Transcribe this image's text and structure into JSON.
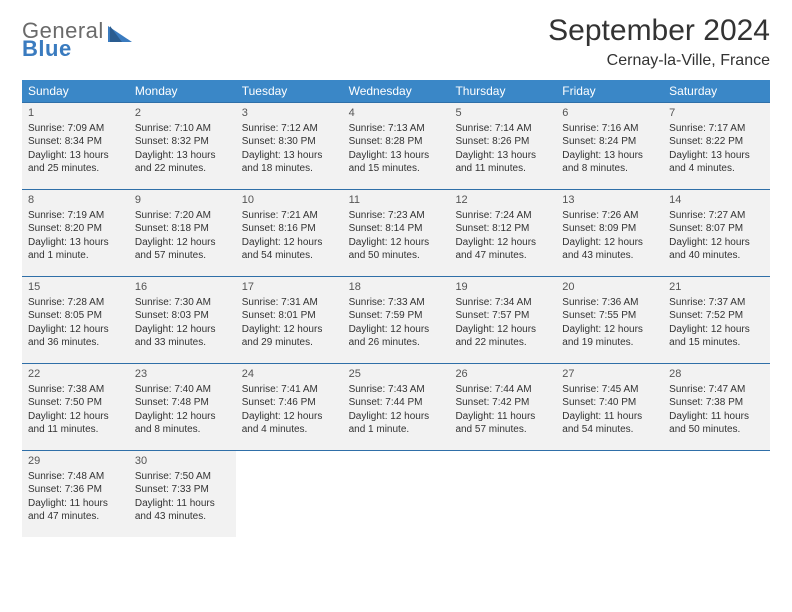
{
  "brand": {
    "top": "General",
    "bottom": "Blue",
    "top_color": "#6a6a6a",
    "bottom_color": "#3a7bbf"
  },
  "title": "September 2024",
  "location": "Cernay-la-Ville, France",
  "accent_color": "#3a87c7",
  "border_color": "#2f6fa8",
  "cell_bg": "#f2f2f2",
  "dow": [
    "Sunday",
    "Monday",
    "Tuesday",
    "Wednesday",
    "Thursday",
    "Friday",
    "Saturday"
  ],
  "weeks": [
    [
      {
        "n": "1",
        "sr": "7:09 AM",
        "ss": "8:34 PM",
        "dl": "13 hours and 25 minutes."
      },
      {
        "n": "2",
        "sr": "7:10 AM",
        "ss": "8:32 PM",
        "dl": "13 hours and 22 minutes."
      },
      {
        "n": "3",
        "sr": "7:12 AM",
        "ss": "8:30 PM",
        "dl": "13 hours and 18 minutes."
      },
      {
        "n": "4",
        "sr": "7:13 AM",
        "ss": "8:28 PM",
        "dl": "13 hours and 15 minutes."
      },
      {
        "n": "5",
        "sr": "7:14 AM",
        "ss": "8:26 PM",
        "dl": "13 hours and 11 minutes."
      },
      {
        "n": "6",
        "sr": "7:16 AM",
        "ss": "8:24 PM",
        "dl": "13 hours and 8 minutes."
      },
      {
        "n": "7",
        "sr": "7:17 AM",
        "ss": "8:22 PM",
        "dl": "13 hours and 4 minutes."
      }
    ],
    [
      {
        "n": "8",
        "sr": "7:19 AM",
        "ss": "8:20 PM",
        "dl": "13 hours and 1 minute."
      },
      {
        "n": "9",
        "sr": "7:20 AM",
        "ss": "8:18 PM",
        "dl": "12 hours and 57 minutes."
      },
      {
        "n": "10",
        "sr": "7:21 AM",
        "ss": "8:16 PM",
        "dl": "12 hours and 54 minutes."
      },
      {
        "n": "11",
        "sr": "7:23 AM",
        "ss": "8:14 PM",
        "dl": "12 hours and 50 minutes."
      },
      {
        "n": "12",
        "sr": "7:24 AM",
        "ss": "8:12 PM",
        "dl": "12 hours and 47 minutes."
      },
      {
        "n": "13",
        "sr": "7:26 AM",
        "ss": "8:09 PM",
        "dl": "12 hours and 43 minutes."
      },
      {
        "n": "14",
        "sr": "7:27 AM",
        "ss": "8:07 PM",
        "dl": "12 hours and 40 minutes."
      }
    ],
    [
      {
        "n": "15",
        "sr": "7:28 AM",
        "ss": "8:05 PM",
        "dl": "12 hours and 36 minutes."
      },
      {
        "n": "16",
        "sr": "7:30 AM",
        "ss": "8:03 PM",
        "dl": "12 hours and 33 minutes."
      },
      {
        "n": "17",
        "sr": "7:31 AM",
        "ss": "8:01 PM",
        "dl": "12 hours and 29 minutes."
      },
      {
        "n": "18",
        "sr": "7:33 AM",
        "ss": "7:59 PM",
        "dl": "12 hours and 26 minutes."
      },
      {
        "n": "19",
        "sr": "7:34 AM",
        "ss": "7:57 PM",
        "dl": "12 hours and 22 minutes."
      },
      {
        "n": "20",
        "sr": "7:36 AM",
        "ss": "7:55 PM",
        "dl": "12 hours and 19 minutes."
      },
      {
        "n": "21",
        "sr": "7:37 AM",
        "ss": "7:52 PM",
        "dl": "12 hours and 15 minutes."
      }
    ],
    [
      {
        "n": "22",
        "sr": "7:38 AM",
        "ss": "7:50 PM",
        "dl": "12 hours and 11 minutes."
      },
      {
        "n": "23",
        "sr": "7:40 AM",
        "ss": "7:48 PM",
        "dl": "12 hours and 8 minutes."
      },
      {
        "n": "24",
        "sr": "7:41 AM",
        "ss": "7:46 PM",
        "dl": "12 hours and 4 minutes."
      },
      {
        "n": "25",
        "sr": "7:43 AM",
        "ss": "7:44 PM",
        "dl": "12 hours and 1 minute."
      },
      {
        "n": "26",
        "sr": "7:44 AM",
        "ss": "7:42 PM",
        "dl": "11 hours and 57 minutes."
      },
      {
        "n": "27",
        "sr": "7:45 AM",
        "ss": "7:40 PM",
        "dl": "11 hours and 54 minutes."
      },
      {
        "n": "28",
        "sr": "7:47 AM",
        "ss": "7:38 PM",
        "dl": "11 hours and 50 minutes."
      }
    ],
    [
      {
        "n": "29",
        "sr": "7:48 AM",
        "ss": "7:36 PM",
        "dl": "11 hours and 47 minutes."
      },
      {
        "n": "30",
        "sr": "7:50 AM",
        "ss": "7:33 PM",
        "dl": "11 hours and 43 minutes."
      },
      null,
      null,
      null,
      null,
      null
    ]
  ]
}
